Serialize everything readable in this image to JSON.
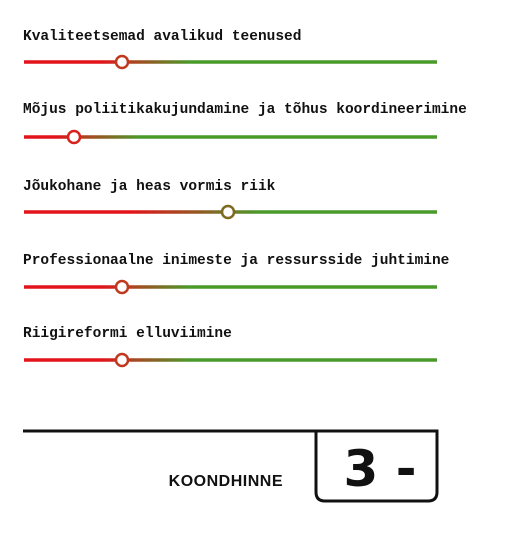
{
  "criteria": [
    {
      "label": "Kvaliteetsemad avalikud teenused"
    },
    {
      "label": "Mõjus poliitikakujundamine ja tõhus koordineerimine"
    },
    {
      "label": "Jõukohane ja heas vormis riik"
    },
    {
      "label": "Professionaalne inimeste ja ressursside juhtimine"
    },
    {
      "label": "Riigireformi elluviimine"
    }
  ],
  "summary": {
    "label": "KOONDHINNE",
    "grade": "3 -"
  }
}
